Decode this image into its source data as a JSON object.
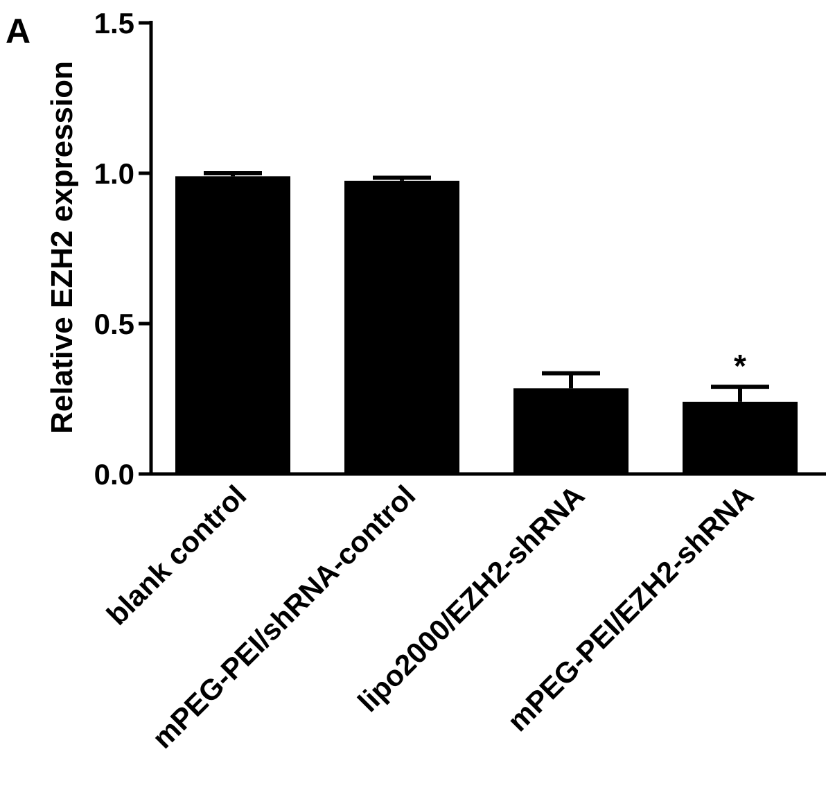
{
  "panel_label": "A",
  "chart_data": {
    "type": "bar",
    "ylabel": "Relative EZH2 expression",
    "ylim": [
      0,
      1.5
    ],
    "yticks": [
      "0.0",
      "0.5",
      "1.0",
      "1.5"
    ],
    "categories": [
      "blank control",
      "mPEG-PEI/shRNA-control",
      "lipo2000/EZH2-shRNA",
      "mPEG-PEI/EZH2-shRNA"
    ],
    "values": [
      0.99,
      0.975,
      0.285,
      0.24
    ],
    "errors": [
      0.01,
      0.01,
      0.05,
      0.05
    ],
    "annotations": [
      "",
      "",
      "",
      "*"
    ],
    "bar_color": "#000000",
    "grid": false,
    "legend": "none"
  }
}
